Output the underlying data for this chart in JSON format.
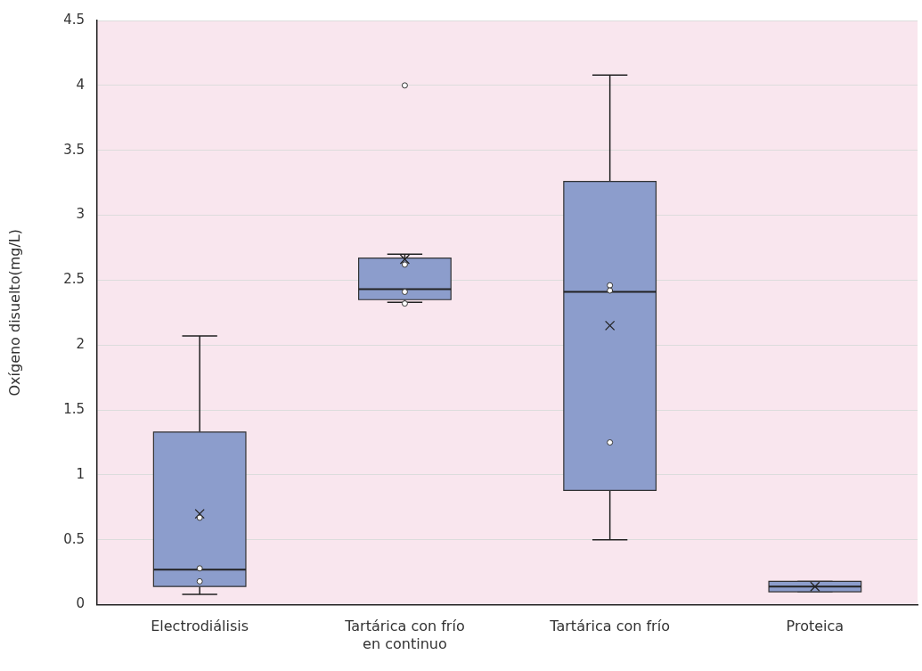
{
  "chart_data": {
    "type": "box",
    "ylabel": "Oxígeno disuelto(mg/L)",
    "categories": [
      "Electrodiálisis",
      "Tartárica con frío en continuo",
      "Tartárica con frío",
      "Proteica"
    ],
    "color": "#8c9dcc",
    "boxes": [
      {
        "low": 0.08,
        "q1": 0.14,
        "median": 0.27,
        "q3": 1.33,
        "high": 2.07,
        "mean": 0.7
      },
      {
        "low": 2.33,
        "q1": 2.35,
        "median": 2.43,
        "q3": 2.67,
        "high": 2.7,
        "mean": 2.66,
        "outliers": [
          4.0
        ]
      },
      {
        "low": 0.5,
        "q1": 0.88,
        "median": 2.41,
        "q3": 3.26,
        "high": 4.08,
        "mean": 2.15
      },
      {
        "low": 0.1,
        "q1": 0.1,
        "median": 0.14,
        "q3": 0.18,
        "high": 0.18,
        "mean": 0.14
      }
    ],
    "series": [
      {
        "type": "scatter",
        "marker": "circle",
        "color": "#ffffff",
        "x": [
          "Electrodiálisis",
          "Electrodiálisis",
          "Electrodiálisis",
          "Tartárica con frío en continuo",
          "Tartárica con frío en continuo",
          "Tartárica con frío en continuo",
          "Tartárica con frío",
          "Tartárica con frío",
          "Tartárica con frío"
        ],
        "values": [
          0.67,
          0.28,
          0.18,
          2.62,
          2.41,
          2.32,
          2.46,
          2.42,
          1.25
        ]
      }
    ],
    "ylim": [
      0,
      4.5
    ],
    "yticks": [
      0,
      0.5,
      1,
      1.5,
      2,
      2.5,
      3,
      3.5,
      4,
      4.5
    ],
    "grid": "y"
  }
}
